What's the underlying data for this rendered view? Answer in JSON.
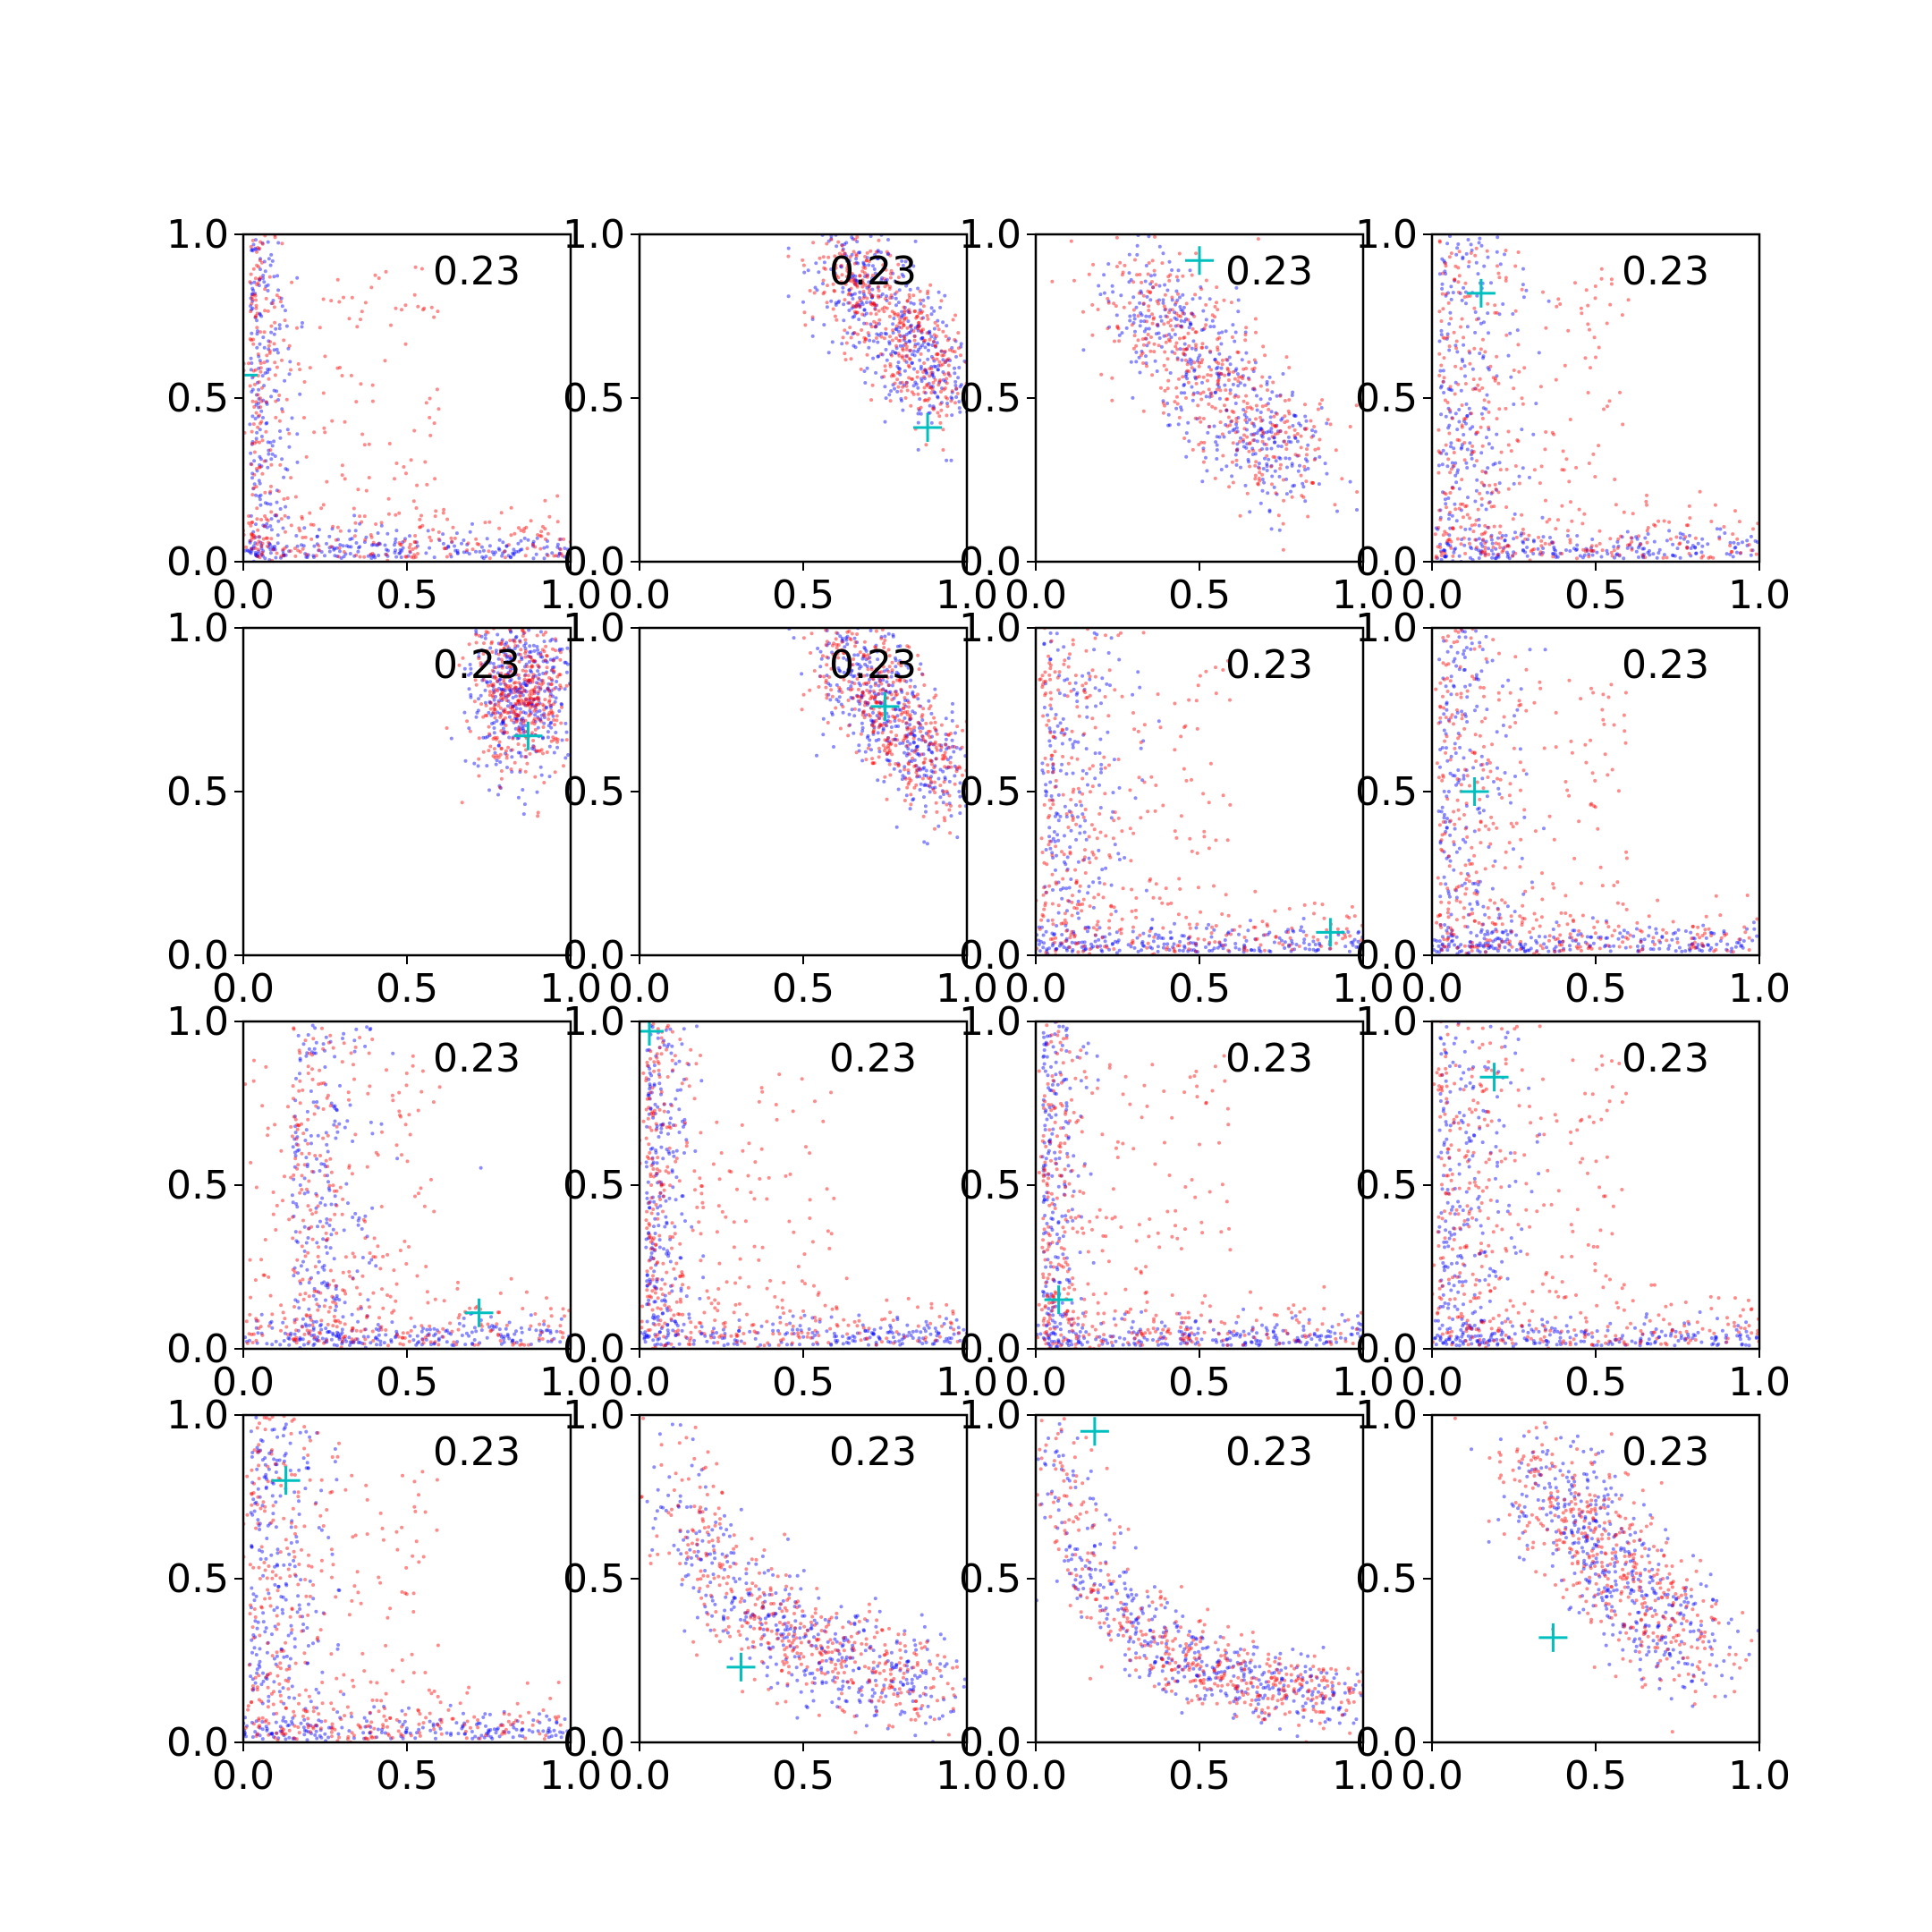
{
  "colors": {
    "series_a": "#0000ff",
    "series_b": "#ff0000",
    "marker": "#00bfbf",
    "axes": "#000000"
  },
  "chart_data": [
    {
      "type": "scatter",
      "annotation": "0.23",
      "xlim": [
        0,
        1
      ],
      "ylim": [
        0,
        1
      ],
      "x_ticks": [
        "0.0",
        "0.5",
        "1.0"
      ],
      "y_ticks": [
        "0.0",
        "0.5",
        "1.0"
      ],
      "grid": false,
      "marker": {
        "x": 0.0,
        "y": 0.57
      }
    },
    {
      "type": "scatter",
      "annotation": "0.23",
      "xlim": [
        0,
        1
      ],
      "ylim": [
        0,
        1
      ],
      "x_ticks": [
        "0.0",
        "0.5",
        "1.0"
      ],
      "y_ticks": [
        "0.0",
        "0.5",
        "1.0"
      ],
      "grid": false,
      "marker": {
        "x": 0.88,
        "y": 0.41
      }
    },
    {
      "type": "scatter",
      "annotation": "0.23",
      "xlim": [
        0,
        1
      ],
      "ylim": [
        0,
        1
      ],
      "x_ticks": [
        "0.0",
        "0.5",
        "1.0"
      ],
      "y_ticks": [
        "0.0",
        "0.5",
        "1.0"
      ],
      "grid": false,
      "marker": {
        "x": 0.5,
        "y": 0.92
      }
    },
    {
      "type": "scatter",
      "annotation": "0.23",
      "xlim": [
        0,
        1
      ],
      "ylim": [
        0,
        1
      ],
      "x_ticks": [
        "0.0",
        "0.5",
        "1.0"
      ],
      "y_ticks": [
        "0.0",
        "0.5",
        "1.0"
      ],
      "grid": false,
      "marker": {
        "x": 0.15,
        "y": 0.82
      }
    },
    {
      "type": "scatter",
      "annotation": "0.23",
      "xlim": [
        0,
        1
      ],
      "ylim": [
        0,
        1
      ],
      "x_ticks": [
        "0.0",
        "0.5",
        "1.0"
      ],
      "y_ticks": [
        "0.0",
        "0.5",
        "1.0"
      ],
      "grid": false,
      "marker": {
        "x": 0.87,
        "y": 0.67
      }
    },
    {
      "type": "scatter",
      "annotation": "0.23",
      "xlim": [
        0,
        1
      ],
      "ylim": [
        0,
        1
      ],
      "x_ticks": [
        "0.0",
        "0.5",
        "1.0"
      ],
      "y_ticks": [
        "0.0",
        "0.5",
        "1.0"
      ],
      "grid": false,
      "marker": {
        "x": 0.75,
        "y": 0.76
      }
    },
    {
      "type": "scatter",
      "annotation": "0.23",
      "xlim": [
        0,
        1
      ],
      "ylim": [
        0,
        1
      ],
      "x_ticks": [
        "0.0",
        "0.5",
        "1.0"
      ],
      "y_ticks": [
        "0.0",
        "0.5",
        "1.0"
      ],
      "grid": false,
      "marker": {
        "x": 0.9,
        "y": 0.07
      }
    },
    {
      "type": "scatter",
      "annotation": "0.23",
      "xlim": [
        0,
        1
      ],
      "ylim": [
        0,
        1
      ],
      "x_ticks": [
        "0.0",
        "0.5",
        "1.0"
      ],
      "y_ticks": [
        "0.0",
        "0.5",
        "1.0"
      ],
      "grid": false,
      "marker": {
        "x": 0.13,
        "y": 0.5
      }
    },
    {
      "type": "scatter",
      "annotation": "0.23",
      "xlim": [
        0,
        1
      ],
      "ylim": [
        0,
        1
      ],
      "x_ticks": [
        "0.0",
        "0.5",
        "1.0"
      ],
      "y_ticks": [
        "0.0",
        "0.5",
        "1.0"
      ],
      "grid": false,
      "marker": {
        "x": 0.72,
        "y": 0.11
      }
    },
    {
      "type": "scatter",
      "annotation": "0.23",
      "xlim": [
        0,
        1
      ],
      "ylim": [
        0,
        1
      ],
      "x_ticks": [
        "0.0",
        "0.5",
        "1.0"
      ],
      "y_ticks": [
        "0.0",
        "0.5",
        "1.0"
      ],
      "grid": false,
      "marker": {
        "x": 0.03,
        "y": 0.97
      }
    },
    {
      "type": "scatter",
      "annotation": "0.23",
      "xlim": [
        0,
        1
      ],
      "ylim": [
        0,
        1
      ],
      "x_ticks": [
        "0.0",
        "0.5",
        "1.0"
      ],
      "y_ticks": [
        "0.0",
        "0.5",
        "1.0"
      ],
      "grid": false,
      "marker": {
        "x": 0.07,
        "y": 0.15
      }
    },
    {
      "type": "scatter",
      "annotation": "0.23",
      "xlim": [
        0,
        1
      ],
      "ylim": [
        0,
        1
      ],
      "x_ticks": [
        "0.0",
        "0.5",
        "1.0"
      ],
      "y_ticks": [
        "0.0",
        "0.5",
        "1.0"
      ],
      "grid": false,
      "marker": {
        "x": 0.19,
        "y": 0.83
      }
    },
    {
      "type": "scatter",
      "annotation": "0.23",
      "xlim": [
        0,
        1
      ],
      "ylim": [
        0,
        1
      ],
      "x_ticks": [
        "0.0",
        "0.5",
        "1.0"
      ],
      "y_ticks": [
        "0.0",
        "0.5",
        "1.0"
      ],
      "grid": false,
      "marker": {
        "x": 0.13,
        "y": 0.8
      }
    },
    {
      "type": "scatter",
      "annotation": "0.23",
      "xlim": [
        0,
        1
      ],
      "ylim": [
        0,
        1
      ],
      "x_ticks": [
        "0.0",
        "0.5",
        "1.0"
      ],
      "y_ticks": [
        "0.0",
        "0.5",
        "1.0"
      ],
      "grid": false,
      "marker": {
        "x": 0.31,
        "y": 0.23
      }
    },
    {
      "type": "scatter",
      "annotation": "0.23",
      "xlim": [
        0,
        1
      ],
      "ylim": [
        0,
        1
      ],
      "x_ticks": [
        "0.0",
        "0.5",
        "1.0"
      ],
      "y_ticks": [
        "0.0",
        "0.5",
        "1.0"
      ],
      "grid": false,
      "marker": {
        "x": 0.18,
        "y": 0.95
      }
    },
    {
      "type": "scatter",
      "annotation": "0.23",
      "xlim": [
        0,
        1
      ],
      "ylim": [
        0,
        1
      ],
      "x_ticks": [
        "0.0",
        "0.5",
        "1.0"
      ],
      "y_ticks": [
        "0.0",
        "0.5",
        "1.0"
      ],
      "grid": false,
      "marker": {
        "x": 0.37,
        "y": 0.32
      }
    }
  ]
}
